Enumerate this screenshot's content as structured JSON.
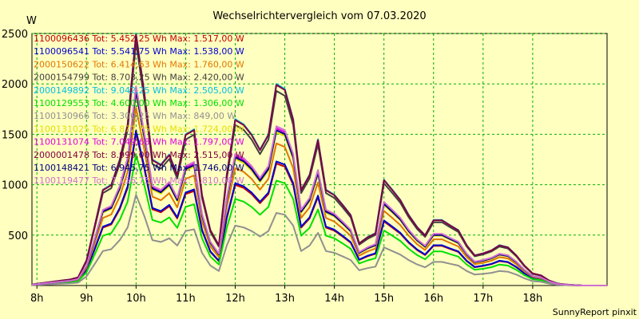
{
  "chart_data": {
    "type": "line",
    "title": "Wechselrichtervergleich vom 07.03.2020",
    "ylabel": "W",
    "ylim": [
      0,
      2500
    ],
    "xlim": [
      7.9,
      19.5
    ],
    "yticks": [
      500,
      1000,
      1500,
      2000,
      2500
    ],
    "xticks": [
      {
        "v": 8,
        "label": "8h"
      },
      {
        "v": 9,
        "label": "9h"
      },
      {
        "v": 10,
        "label": "10h"
      },
      {
        "v": 11,
        "label": "11h"
      },
      {
        "v": 12,
        "label": "12h"
      },
      {
        "v": 13,
        "label": "13h"
      },
      {
        "v": 14,
        "label": "14h"
      },
      {
        "v": 15,
        "label": "15h"
      },
      {
        "v": 16,
        "label": "16h"
      },
      {
        "v": 17,
        "label": "17h"
      },
      {
        "v": 18,
        "label": "18h"
      }
    ],
    "grid": true,
    "legend_position": "top-left",
    "x": [
      7.9,
      8.2,
      8.5,
      8.67,
      8.83,
      9.0,
      9.17,
      9.33,
      9.5,
      9.67,
      9.83,
      10.0,
      10.17,
      10.33,
      10.5,
      10.67,
      10.83,
      11.0,
      11.17,
      11.33,
      11.5,
      11.67,
      11.83,
      12.0,
      12.17,
      12.33,
      12.5,
      12.67,
      12.83,
      13.0,
      13.17,
      13.33,
      13.5,
      13.67,
      13.83,
      14.0,
      14.17,
      14.33,
      14.5,
      14.67,
      14.83,
      15.0,
      15.17,
      15.33,
      15.5,
      15.67,
      15.83,
      16.0,
      16.17,
      16.33,
      16.5,
      16.67,
      16.83,
      17.0,
      17.17,
      17.33,
      17.5,
      17.67,
      17.83,
      18.0,
      18.17,
      18.33,
      18.5,
      18.67,
      18.83,
      19.0,
      19.5
    ],
    "series": [
      {
        "name": "1100096436 Tot: 5.452,25 Wh Max: 1.517,00 W",
        "color": "#c00000",
        "scale": 0.605
      },
      {
        "name": "1100096541 Tot: 5.541,75 Wh Max: 1.538,00 W",
        "color": "#0000d0",
        "scale": 0.615
      },
      {
        "name": "2000150622 Tot: 6.414,63 Wh Max: 1.760,00 W",
        "color": "#e07800",
        "scale": 0.705
      },
      {
        "name": "2000154799 Tot: 8.703,25 Wh Max: 2.420,00 W",
        "color": "#404040",
        "scale": 0.965
      },
      {
        "name": "2000149892 Tot: 9.042,25 Wh Max: 2.505,00 W",
        "color": "#00c0e0",
        "scale": 1.0
      },
      {
        "name": "1100129553 Tot: 4.600,00 Wh Max: 1.306,00 W",
        "color": "#00e000",
        "scale": 0.52
      },
      {
        "name": "1100130966 Tot: 3.300,25 Wh Max: 849,00 W",
        "color": "#909090",
        "scale": 0.36
      },
      {
        "name": "1100131025 Tot: 6.872,75 Wh Max: 1.724,00 W",
        "color": "#e0e000",
        "scale": 0.76
      },
      {
        "name": "1100131074 Tot: 7.049,68 Wh Max: 1.797,00 W",
        "color": "#e000e0",
        "scale": 0.78
      },
      {
        "name": "2000001478 Tot: 8.999,00 Wh Max: 2.515,00 W",
        "color": "#800040",
        "scale": 0.995
      },
      {
        "name": "1100148421 Tot: 6.945,75 Wh Max: 1.746,00 W",
        "color": "#000080",
        "scale": 0.77
      },
      {
        "name": "1100119477 Tot: 7.156,75 Wh Max: 1.810,00 W",
        "color": "#d070d0",
        "scale": 0.79
      }
    ],
    "profile": [
      10,
      30,
      50,
      60,
      80,
      250,
      600,
      950,
      1000,
      1250,
      1600,
      2500,
      1900,
      1250,
      1200,
      1300,
      1100,
      1500,
      1550,
      900,
      550,
      400,
      1100,
      1650,
      1600,
      1500,
      1350,
      1500,
      2000,
      1950,
      1650,
      950,
      1100,
      1450,
      950,
      900,
      800,
      700,
      420,
      480,
      520,
      1050,
      950,
      850,
      700,
      580,
      500,
      650,
      650,
      600,
      550,
      400,
      300,
      320,
      350,
      400,
      380,
      300,
      200,
      120,
      100,
      50,
      20,
      10,
      5,
      0,
      0
    ]
  },
  "footer": {
    "credit": "SunnyReport pinxit"
  }
}
